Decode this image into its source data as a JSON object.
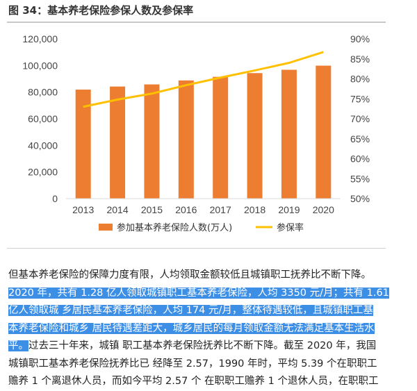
{
  "figure_title": "图 34：基本养老保险参保人数及参保率",
  "chart_data": {
    "type": "bar",
    "categories": [
      "2013",
      "2014",
      "2015",
      "2016",
      "2017",
      "2018",
      "2019",
      "2020"
    ],
    "series": [
      {
        "name": "参加基本养老保险人数(万人)",
        "type": "bar",
        "axis": "left",
        "color": "#ed7d31",
        "values": [
          81900,
          84200,
          85800,
          88800,
          91500,
          94300,
          96800,
          99900
        ]
      },
      {
        "name": "参保率",
        "type": "line",
        "axis": "right",
        "color": "#ffc000",
        "values": [
          73.0,
          74.8,
          76.3,
          78.4,
          80.3,
          82.1,
          84.0,
          86.7
        ]
      }
    ],
    "y_left": {
      "min": 0,
      "max": 120000,
      "ticks": [
        0,
        20000,
        40000,
        60000,
        80000,
        100000,
        120000
      ],
      "tick_labels": [
        "0",
        "20,000",
        "40,000",
        "60,000",
        "80,000",
        "100,000",
        "120,000"
      ]
    },
    "y_right": {
      "min": 50,
      "max": 90,
      "ticks": [
        50,
        55,
        60,
        65,
        70,
        75,
        80,
        85,
        90
      ],
      "tick_labels": [
        "50%",
        "55%",
        "60%",
        "65%",
        "70%",
        "75%",
        "80%",
        "85%",
        "90%"
      ]
    },
    "grid": false,
    "legend_position": "bottom"
  },
  "body": {
    "line1": "但基本养老保险的保障力度有限，人均领取金额较低且城镇职工抚养比不断下降。",
    "hl1": "2020 年，共有 1.28 亿人领取城镇职工基本养老保险，人均 3350 元/月；共有 1.61",
    "hl2": "亿人领取城 乡居民基本养老保险，人均 174 元/月，整体待遇较低，且城镇职工基",
    "hl3": "本养老保险和城乡 居民待遇差距大，城乡居民的每月领取金额无法满足基本生活水",
    "hl4": "平。",
    "line5_rest": "过去三十年来，城镇 职工基本养老保险抚养比不断下降。截至 2020 年，我国",
    "line6": "城镇职工基本养老保险抚养比已 经降至 2.57，1990 年时，平均 5.39 个在职职工",
    "line7": "赡养 1 个离退休人员，而如今平均 2.57 个 在职职工赡养 1 个退休人员，在职职工"
  }
}
